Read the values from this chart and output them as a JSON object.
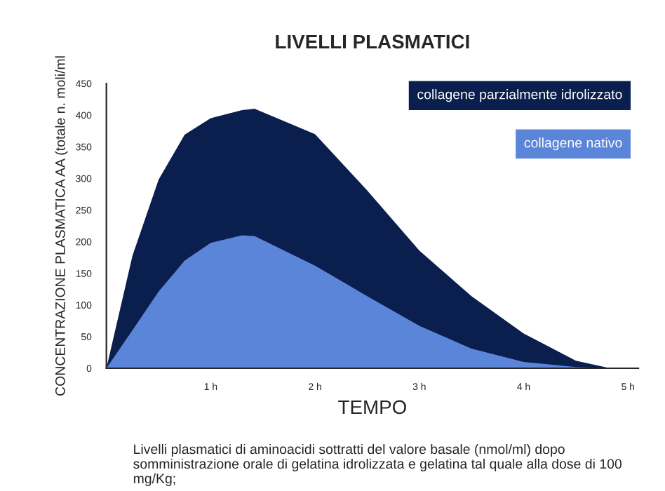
{
  "chart_data": {
    "type": "area",
    "title": "LIVELLI PLASMATICI",
    "xlabel": "TEMPO",
    "ylabel": "CONCENTRAZIONE PLASMATICA AA (totale n. moli/ml",
    "x": [
      0,
      0.25,
      0.5,
      0.75,
      1,
      1.3,
      1.42,
      2,
      2.5,
      3,
      3.5,
      4,
      4.5,
      4.83
    ],
    "series": [
      {
        "name": "collagene parzialmente idrolizzato",
        "color": "#0a1f4d",
        "values": [
          0,
          178,
          298,
          369,
          395,
          408,
          410,
          370,
          281,
          186,
          114,
          55,
          12,
          0
        ]
      },
      {
        "name": "collagene nativo",
        "color": "#5b85d8",
        "values": [
          0,
          60,
          121,
          170,
          198,
          210,
          209,
          162,
          114,
          67,
          31,
          10,
          2,
          0
        ]
      }
    ],
    "xlim": [
      0,
      5.1
    ],
    "xticks": [
      {
        "value": 0,
        "label": null
      },
      {
        "value": 1,
        "label": "1 h"
      },
      {
        "value": 2,
        "label": "2 h"
      },
      {
        "value": 3,
        "label": "3 h"
      },
      {
        "value": 4,
        "label": "4 h"
      },
      {
        "value": 5,
        "label": "5 h"
      }
    ],
    "ylim": [
      0,
      450
    ],
    "yticks": [
      0,
      50,
      100,
      150,
      200,
      250,
      300,
      350,
      400,
      450
    ],
    "grid": false,
    "legend": "top right",
    "annotations": [
      "Livelli plasmatici di aminoacidi sottratti del valore basale (nmol/ml) dopo somministrazione orale di gelatina idrolizzata e gelatina tal quale alla dose di 100 mg/Kg;"
    ]
  }
}
